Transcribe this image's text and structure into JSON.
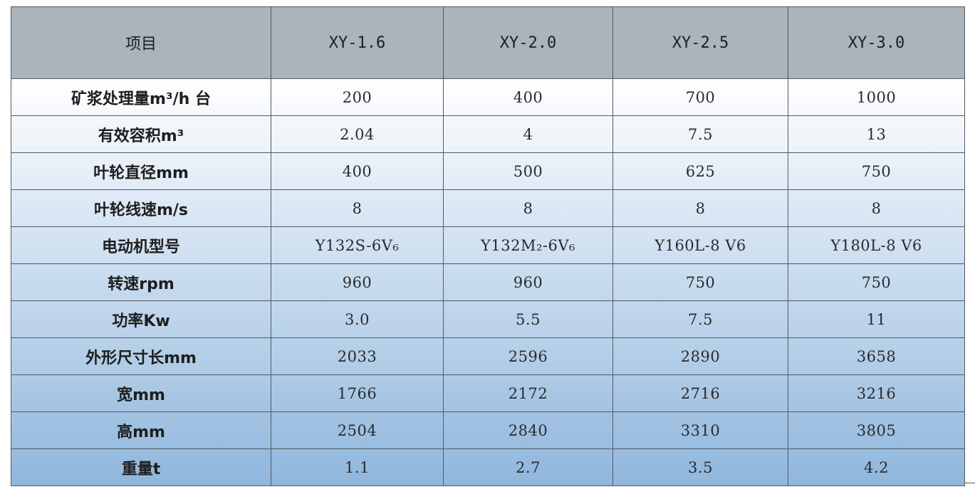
{
  "header": [
    "项目",
    "XY-1.6",
    "XY-2.0",
    "XY-2.5",
    "XY-3.0"
  ],
  "rows": [
    {
      "label": "矿浆处理量m³/h 台",
      "values": [
        "200",
        "400",
        "700",
        "1000"
      ]
    },
    {
      "label": "有效容积m³",
      "values": [
        "2.04",
        "4",
        "7.5",
        "13"
      ]
    },
    {
      "label": "叶轮直径mm",
      "values": [
        "400",
        "500",
        "625",
        "750"
      ]
    },
    {
      "label": "叶轮线速m/s",
      "values": [
        "8",
        "8",
        "8",
        "8"
      ]
    },
    {
      "label": "电动机型号",
      "values": [
        "Y132S-6V₆",
        "Y132M₂-6V₆",
        "Y160L-8 V6",
        "Y180L-8  V6"
      ]
    },
    {
      "label": "转速rpm",
      "values": [
        "960",
        "960",
        "750",
        "750"
      ]
    },
    {
      "label": "功率Kw",
      "values": [
        "3.0",
        "5.5",
        "7.5",
        "11"
      ]
    },
    {
      "label": "外形尺寸长mm",
      "values": [
        "2033",
        "2596",
        "2890",
        "3658"
      ]
    },
    {
      "label": "宽mm",
      "values": [
        "1766",
        "2172",
        "2716",
        "3216"
      ]
    },
    {
      "label": "高mm",
      "values": [
        "2504",
        "2840",
        "3310",
        "3805"
      ]
    },
    {
      "label": "重量t",
      "values": [
        "1.1",
        "2.7",
        "3.5",
        "4.2"
      ]
    }
  ],
  "colors": {
    "header_bg": "#a9b4bc",
    "row_gradient_start": "#ffffff",
    "row_gradient_end": "#8fb6dd",
    "border": "#555a60"
  }
}
